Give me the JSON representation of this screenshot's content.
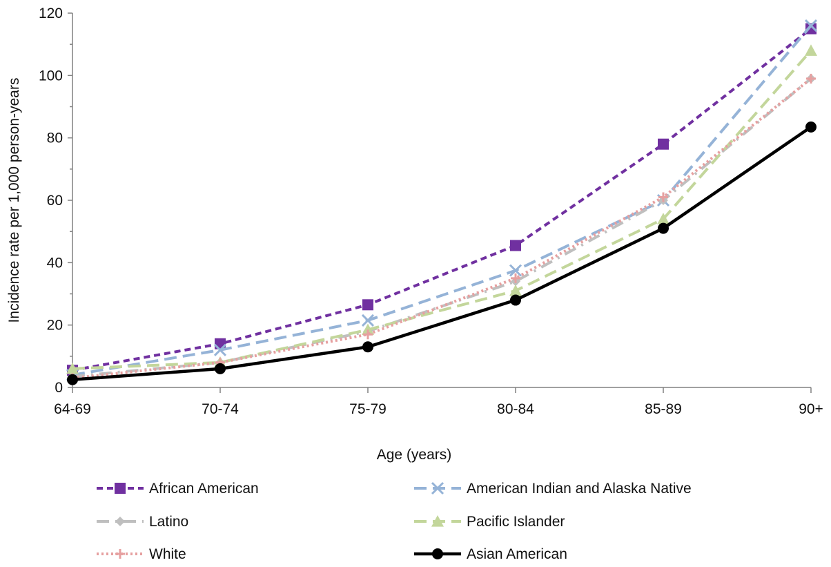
{
  "chart_data": {
    "type": "line",
    "title": "",
    "xlabel": "Age (years)",
    "ylabel": "Incidence rate per 1,000 person-years",
    "categories": [
      "64-69",
      "70-74",
      "75-79",
      "80-84",
      "85-89",
      "90+"
    ],
    "ylim": [
      0,
      120
    ],
    "yticks": [
      "0",
      "20",
      "40",
      "60",
      "80",
      "100",
      "120"
    ],
    "grid": false,
    "legend_position": "bottom",
    "series": [
      {
        "name": "African American",
        "values": [
          5.5,
          14,
          26.5,
          45.5,
          78,
          115
        ],
        "color": "#7030a0",
        "marker": "square",
        "dash": "dashed"
      },
      {
        "name": "American Indian and Alaska Native",
        "values": [
          4,
          12,
          21.5,
          37.5,
          60,
          116
        ],
        "color": "#95b3d7",
        "marker": "x",
        "dash": "long-dash"
      },
      {
        "name": "Latino",
        "values": [
          3.5,
          8,
          18,
          34,
          60,
          99
        ],
        "color": "#bfbfbf",
        "marker": "diamond",
        "dash": "long-dash-dot"
      },
      {
        "name": "Pacific Islander",
        "values": [
          6,
          8,
          18.5,
          31,
          54,
          108
        ],
        "color": "#c3d69b",
        "marker": "triangle",
        "dash": "long-dash"
      },
      {
        "name": "White",
        "values": [
          3,
          8,
          17,
          35,
          61,
          99
        ],
        "color": "#e6a0a0",
        "marker": "plus",
        "dash": "dotted"
      },
      {
        "name": "Asian American",
        "values": [
          2.5,
          6,
          13,
          28,
          51,
          83.5
        ],
        "color": "#000000",
        "marker": "circle",
        "dash": "solid"
      }
    ]
  }
}
